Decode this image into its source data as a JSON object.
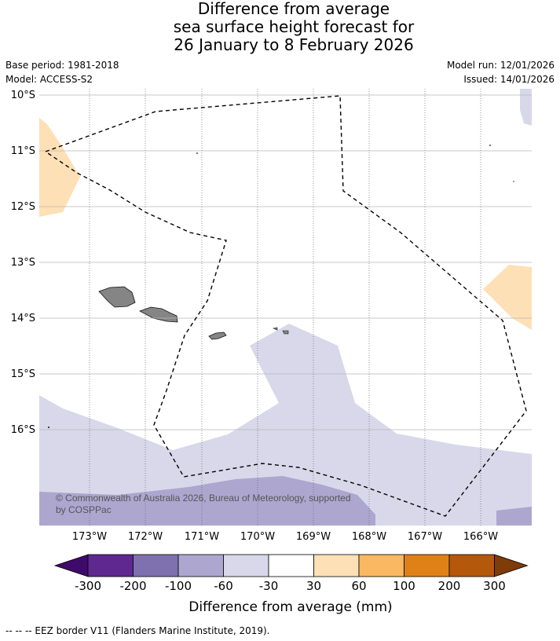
{
  "title_lines": [
    "Difference from average",
    "sea surface height forecast for",
    "26 January to 8 February 2026"
  ],
  "meta": {
    "base_period": "Base period: 1981-2018",
    "model": "Model: ACCESS-S2",
    "model_run": "Model run: 12/01/2026",
    "issued": "Issued: 14/01/2026"
  },
  "map": {
    "lat_labels": [
      "10°S",
      "11°S",
      "12°S",
      "13°S",
      "14°S",
      "15°S",
      "16°S"
    ],
    "lon_labels": [
      "173°W",
      "172°W",
      "171°W",
      "170°W",
      "169°W",
      "168°W",
      "167°W",
      "166°W"
    ],
    "copyright": [
      "© Commonwealth of Australia 2026, Bureau of Meteorology, supported",
      "by COSPPac"
    ]
  },
  "colorbar": {
    "title": "Difference from average (mm)",
    "tick_labels": [
      "-300",
      "-200",
      "-100",
      "-60",
      "-30",
      "30",
      "60",
      "100",
      "200",
      "300"
    ],
    "colors": [
      "#3f0a6b",
      "#5e2890",
      "#7f71b0",
      "#ada6cf",
      "#d8d8ea",
      "#ffffff",
      "#fee0b6",
      "#fbb862",
      "#e08118",
      "#b4580b",
      "#7f3b08"
    ]
  },
  "footer": "-- -- -- EEZ border V11 (Flanders Marine Institute, 2019)."
}
